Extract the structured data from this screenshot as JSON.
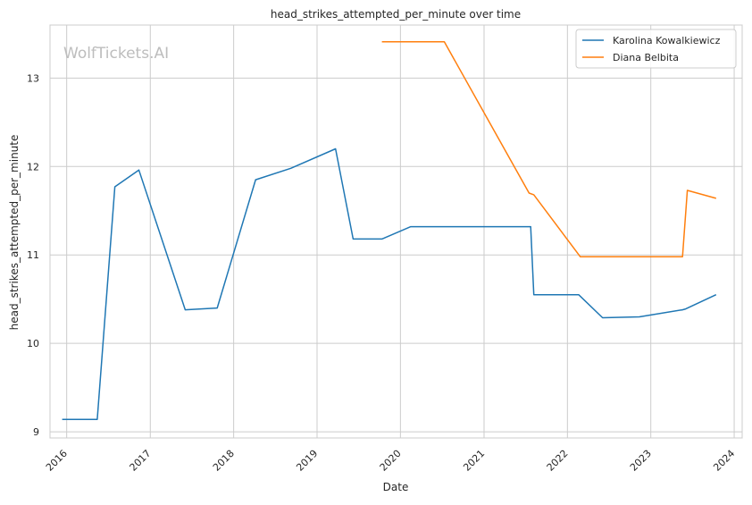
{
  "watermark": "WolfTickets.AI",
  "chart_data": {
    "type": "line",
    "title": "head_strikes_attempted_per_minute over time",
    "xlabel": "Date",
    "ylabel": "head_strikes_attempted_per_minute",
    "x_type": "date",
    "xlim": [
      "2015-10-20",
      "2024-02-05"
    ],
    "ylim": [
      8.93,
      13.6
    ],
    "x_ticks": [
      "2016",
      "2017",
      "2018",
      "2019",
      "2020",
      "2021",
      "2022",
      "2023",
      "2024"
    ],
    "y_ticks": [
      9,
      10,
      11,
      12,
      13
    ],
    "grid": true,
    "legend_position": "top-right",
    "series": [
      {
        "name": "Karolina Kowalkiewicz",
        "color": "#1f77b4",
        "points": [
          [
            "2015-12-12",
            9.14
          ],
          [
            "2016-05-14",
            9.14
          ],
          [
            "2016-07-30",
            11.77
          ],
          [
            "2016-11-12",
            11.96
          ],
          [
            "2017-06-03",
            10.38
          ],
          [
            "2017-10-21",
            10.4
          ],
          [
            "2018-04-07",
            11.85
          ],
          [
            "2018-09-08",
            11.98
          ],
          [
            "2019-03-23",
            12.2
          ],
          [
            "2019-06-08",
            11.18
          ],
          [
            "2019-10-12",
            11.18
          ],
          [
            "2020-02-15",
            11.32
          ],
          [
            "2021-07-24",
            11.32
          ],
          [
            "2021-08-07",
            10.55
          ],
          [
            "2022-02-19",
            10.55
          ],
          [
            "2022-06-04",
            10.29
          ],
          [
            "2022-11-12",
            10.3
          ],
          [
            "2023-05-20",
            10.38
          ],
          [
            "2023-06-03",
            10.39
          ],
          [
            "2023-10-14",
            10.55
          ]
        ]
      },
      {
        "name": "Diana Belbita",
        "color": "#ff7f0e",
        "points": [
          [
            "2019-10-12",
            13.41
          ],
          [
            "2020-07-11",
            13.41
          ],
          [
            "2021-07-17",
            11.7
          ],
          [
            "2021-08-07",
            11.68
          ],
          [
            "2022-02-26",
            10.98
          ],
          [
            "2023-05-20",
            10.98
          ],
          [
            "2023-06-10",
            11.73
          ],
          [
            "2023-10-14",
            11.64
          ]
        ]
      }
    ]
  }
}
